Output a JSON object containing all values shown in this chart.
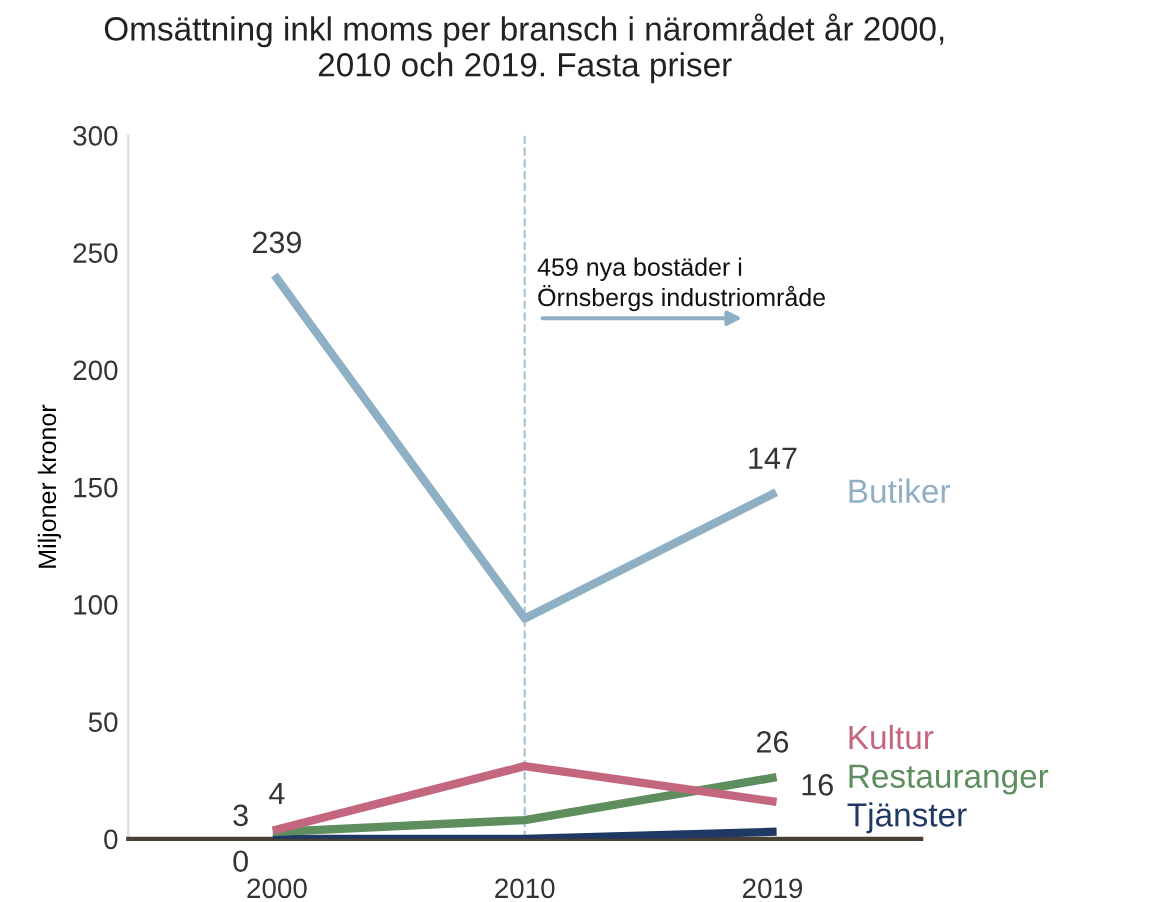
{
  "chart_data": {
    "type": "line",
    "title": "Omsättning inkl moms per bransch i närområdet år 2000,\n2010 och 2019. Fasta priser",
    "ylabel": "Miljoner kronor",
    "categories": [
      "2000",
      "2010",
      "2019"
    ],
    "series": [
      {
        "name": "Butiker",
        "color": "#8fb0c4",
        "values": [
          239,
          94,
          147
        ],
        "value_labels": [
          "239",
          null,
          "147"
        ]
      },
      {
        "name": "Kultur",
        "color": "#c4677e",
        "values": [
          4,
          31,
          16
        ],
        "value_labels": [
          "4",
          null,
          "16"
        ]
      },
      {
        "name": "Restauranger",
        "color": "#5e8d5e",
        "values": [
          3,
          8,
          26
        ],
        "value_labels": [
          "3",
          null,
          "26"
        ]
      },
      {
        "name": "Tjänster",
        "color": "#1f3864",
        "values": [
          0,
          0,
          3
        ],
        "value_labels": [
          "0",
          null,
          null
        ]
      }
    ],
    "ylim": [
      0,
      300
    ],
    "yticks": [
      0,
      50,
      100,
      150,
      200,
      250,
      300
    ],
    "grid": false,
    "legend": false,
    "marker": "none",
    "line_style": "solid",
    "ref_lines": [
      {
        "axis": "x",
        "value": "2010",
        "label": null,
        "color": "#a9c4d4",
        "line_style": "dashed"
      }
    ],
    "annotations": [
      {
        "text": "459 nya bostäder i\nÖrnsbergs industriområde",
        "x": "2010",
        "y": 225
      }
    ]
  }
}
